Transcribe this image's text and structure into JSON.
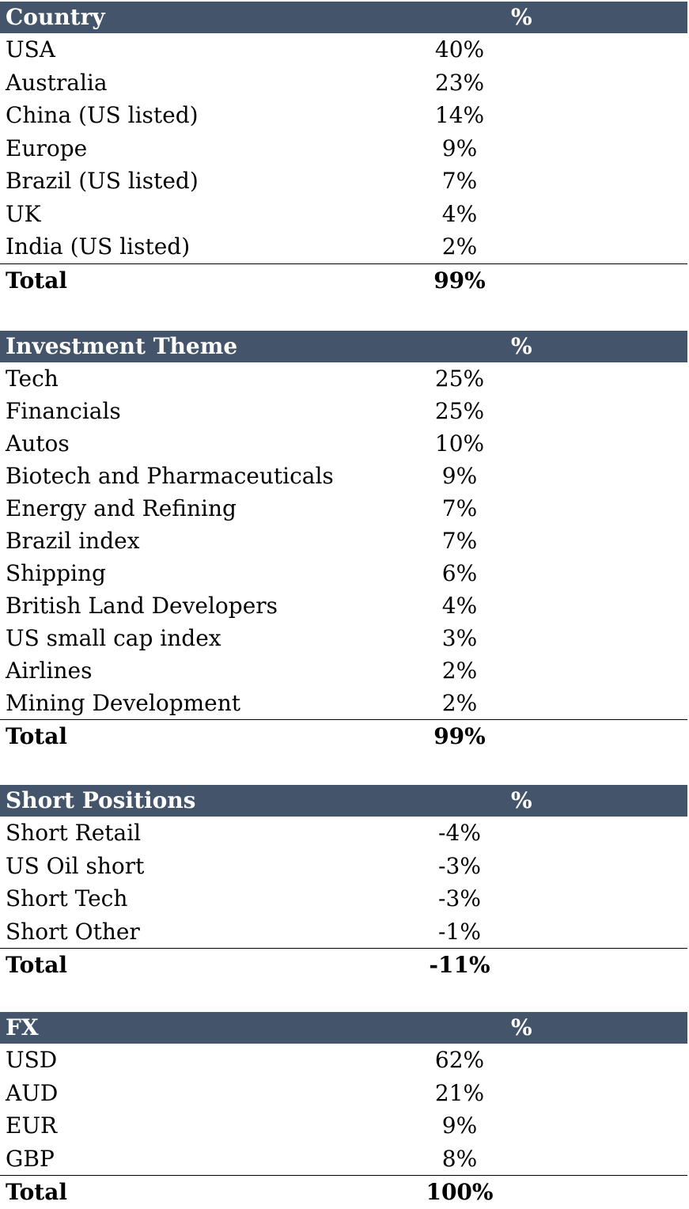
{
  "tables": [
    {
      "header": {
        "label": "Country",
        "pct": "%"
      },
      "rows": [
        {
          "label": "USA",
          "pct": "40%"
        },
        {
          "label": "Australia",
          "pct": "23%"
        },
        {
          "label": "China (US listed)",
          "pct": "14%"
        },
        {
          "label": "Europe",
          "pct": "9%"
        },
        {
          "label": "Brazil (US listed)",
          "pct": "7%"
        },
        {
          "label": "UK",
          "pct": "4%"
        },
        {
          "label": "India (US listed)",
          "pct": "2%"
        }
      ],
      "total": {
        "label": "Total",
        "pct": "99%"
      }
    },
    {
      "header": {
        "label": "Investment Theme",
        "pct": "%"
      },
      "rows": [
        {
          "label": "Tech",
          "pct": "25%"
        },
        {
          "label": "Financials",
          "pct": "25%"
        },
        {
          "label": "Autos",
          "pct": "10%"
        },
        {
          "label": "Biotech and Pharmaceuticals",
          "pct": "9%"
        },
        {
          "label": "Energy and Refining",
          "pct": "7%"
        },
        {
          "label": "Brazil index",
          "pct": "7%"
        },
        {
          "label": "Shipping",
          "pct": "6%"
        },
        {
          "label": "British Land Developers",
          "pct": "4%"
        },
        {
          "label": "US small cap index",
          "pct": "3%"
        },
        {
          "label": "Airlines",
          "pct": "2%"
        },
        {
          "label": "Mining Development",
          "pct": "2%"
        }
      ],
      "total": {
        "label": "Total",
        "pct": "99%"
      }
    },
    {
      "header": {
        "label": "Short Positions",
        "pct": "%"
      },
      "rows": [
        {
          "label": "Short Retail",
          "pct": "-4%"
        },
        {
          "label": "US Oil short",
          "pct": "-3%"
        },
        {
          "label": "Short Tech",
          "pct": "-3%"
        },
        {
          "label": "Short Other",
          "pct": "-1%"
        }
      ],
      "total": {
        "label": "Total",
        "pct": "-11%"
      }
    },
    {
      "header": {
        "label": "FX",
        "pct": "%"
      },
      "rows": [
        {
          "label": "USD",
          "pct": "62%"
        },
        {
          "label": "AUD",
          "pct": "21%"
        },
        {
          "label": "EUR",
          "pct": "9%"
        },
        {
          "label": "GBP",
          "pct": "8%"
        }
      ],
      "total": {
        "label": "Total",
        "pct": "100%"
      }
    }
  ],
  "colors": {
    "header_bg": "#44546a",
    "header_text": "#ffffff"
  }
}
